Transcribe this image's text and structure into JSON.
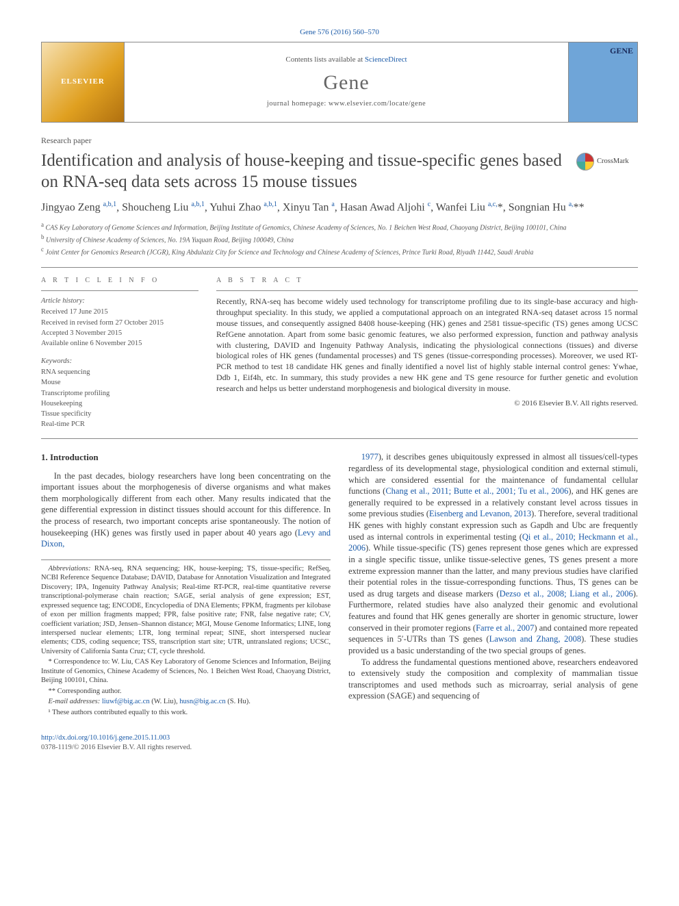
{
  "pagehead": {
    "citation": "Gene 576 (2016) 560–570"
  },
  "masthead": {
    "publisher_logo_text": "ELSEVIER",
    "sd_prefix": "Contents lists available at ",
    "sd_link": "ScienceDirect",
    "journal_name": "Gene",
    "homepage_label": "journal homepage: www.elsevier.com/locate/gene",
    "cover_label": "GENE"
  },
  "paper_type": "Research paper",
  "title": "Identification and analysis of house-keeping and tissue-specific genes based on RNA-seq data sets across 15 mouse tissues",
  "crossmark_label": "CrossMark",
  "authors_html": "Jingyao Zeng <sup><a>a,b,1</a></sup>, Shoucheng Liu <sup><a>a,b,1</a></sup>, Yuhui Zhao <sup><a>a,b,1</a></sup>, Xinyu Tan <sup><a>a</a></sup>, Hasan Awad Aljohi <sup><a>c</a></sup>, Wanfei Liu <sup><a>a,c,</a></sup>*, Songnian Hu <sup><a>a,</a></sup>**",
  "affiliations": [
    "a  CAS Key Laboratory of Genome Sciences and Information, Beijing Institute of Genomics, Chinese Academy of Sciences, No. 1 Beichen West Road, Chaoyang District, Beijing 100101, China",
    "b  University of Chinese Academy of Sciences, No. 19A Yuquan Road, Beijing 100049, China",
    "c  Joint Center for Genomics Research (JCGR), King Abdulaziz City for Science and Technology and Chinese Academy of Sciences, Prince Turki Road, Riyadh 11442, Saudi Arabia"
  ],
  "article_info": {
    "heading": "A R T I C L E   I N F O",
    "history_heading": "Article history:",
    "history": [
      "Received 17 June 2015",
      "Received in revised form 27 October 2015",
      "Accepted 3 November 2015",
      "Available online 6 November 2015"
    ],
    "keywords_heading": "Keywords:",
    "keywords": [
      "RNA sequencing",
      "Mouse",
      "Transcriptome profiling",
      "Housekeeping",
      "Tissue specificity",
      "Real-time PCR"
    ]
  },
  "abstract": {
    "heading": "A B S T R A C T",
    "text": "Recently, RNA-seq has become widely used technology for transcriptome profiling due to its single-base accuracy and high-throughput speciality. In this study, we applied a computational approach on an integrated RNA-seq dataset across 15 normal mouse tissues, and consequently assigned 8408 house-keeping (HK) genes and 2581 tissue-specific (TS) genes among UCSC RefGene annotation. Apart from some basic genomic features, we also performed expression, function and pathway analysis with clustering, DAVID and Ingenuity Pathway Analysis, indicating the physiological connections (tissues) and diverse biological roles of HK genes (fundamental processes) and TS genes (tissue-corresponding processes). Moreover, we used RT-PCR method to test 18 candidate HK genes and finally identified a novel list of highly stable internal control genes: Ywhae, Ddb 1, Eif4h, etc. In summary, this study provides a new HK gene and TS gene resource for further genetic and evolution research and helps us better understand morphogenesis and biological diversity in mouse.",
    "copyright": "© 2016 Elsevier B.V. All rights reserved."
  },
  "intro": {
    "heading": "1. Introduction",
    "para1": "In the past decades, biology researchers have long been concentrating on the important issues about the morphogenesis of diverse organisms and what makes them morphologically different from each other. Many results indicated that the gene differential expression in distinct tissues should account for this difference. In the process of research, two important concepts arise spontaneously. The notion of housekeeping (HK) genes was firstly used in paper about 40 years ago (",
    "para1_link": "Levy and Dixon,",
    "col2_linkcont": "1977",
    "col2_p1": "), it describes genes ubiquitously expressed in almost all tissues/cell-types regardless of its developmental stage, physiological condition and external stimuli, which are considered essential for the maintenance of fundamental cellular functions (",
    "col2_link2": "Chang et al., 2011; Butte et al., 2001; Tu et al., 2006",
    "col2_p1b": "), and HK genes are generally required to be expressed in a relatively constant level across tissues in some previous studies (",
    "col2_link3": "Eisenberg and Levanon, 2013",
    "col2_p1c": "). Therefore, several traditional HK genes with highly constant expression such as Gapdh and Ubc are frequently used as internal controls in experimental testing (",
    "col2_link4": "Qi et al., 2010; Heckmann et al., 2006",
    "col2_p1d": "). While tissue-specific (TS) genes represent those genes which are expressed in a single specific tissue, unlike tissue-selective genes, TS genes present a more extreme expression manner than the latter, and many previous studies have clarified their potential roles in the tissue-corresponding functions. Thus, TS genes can be used as drug targets and disease markers (",
    "col2_link5": "Dezso et al., 2008; Liang et al., 2006",
    "col2_p1e": "). Furthermore, related studies have also analyzed their genomic and evolutional features and found that HK genes generally are shorter in genomic structure, lower conserved in their promoter regions (",
    "col2_link6": "Farre et al., 2007",
    "col2_p1f": ") and contained more repeated sequences in 5′-UTRs than TS genes (",
    "col2_link7": "Lawson and Zhang, 2008",
    "col2_p1g": "). These studies provided us a basic understanding of the two special groups of genes.",
    "col2_p2": "To address the fundamental questions mentioned above, researchers endeavored to extensively study the composition and complexity of mammalian tissue transcriptomes and used methods such as microarray, serial analysis of gene expression (SAGE) and sequencing of"
  },
  "footnotes": {
    "abbrev_label": "Abbreviations:",
    "abbrev": " RNA-seq, RNA sequencing; HK, house-keeping; TS, tissue-specific; RefSeq, NCBI Reference Sequence Database; DAVID, Database for Annotation Visualization and Integrated Discovery; IPA, Ingenuity Pathway Analysis; Real-time RT-PCR, real-time quantitative reverse transcriptional-polymerase chain reaction; SAGE, serial analysis of gene expression; EST, expressed sequence tag; ENCODE, Encyclopedia of DNA Elements; FPKM, fragments per kilobase of exon per million fragments mapped; FPR, false positive rate; FNR, false negative rate; CV, coefficient variation; JSD, Jensen–Shannon distance; MGI, Mouse Genome Informatics; LINE, long interspersed nuclear elements; LTR, long terminal repeat; SINE, short interspersed nuclear elements; CDS, coding sequence; TSS, transcription start site; UTR, untranslated regions; UCSC, University of California Santa Cruz; CT, cycle threshold.",
    "corr1": "*  Correspondence to: W. Liu, CAS Key Laboratory of Genome Sciences and Information, Beijing Institute of Genomics, Chinese Academy of Sciences, No. 1 Beichen West Road, Chaoyang District, Beijing 100101, China.",
    "corr2": "**  Corresponding author.",
    "emails_label": "E-mail addresses: ",
    "email1": "liuwf@big.ac.cn",
    "email1_who": " (W. Liu), ",
    "email2": "husn@big.ac.cn",
    "email2_who": " (S. Hu).",
    "equal": "¹  These authors contributed equally to this work."
  },
  "footer": {
    "doi": "http://dx.doi.org/10.1016/j.gene.2015.11.003",
    "issn_line": "0378-1119/© 2016 Elsevier B.V. All rights reserved."
  },
  "colors": {
    "link": "#1a5aa8",
    "text": "#3e3e3e",
    "rule": "#888888"
  }
}
